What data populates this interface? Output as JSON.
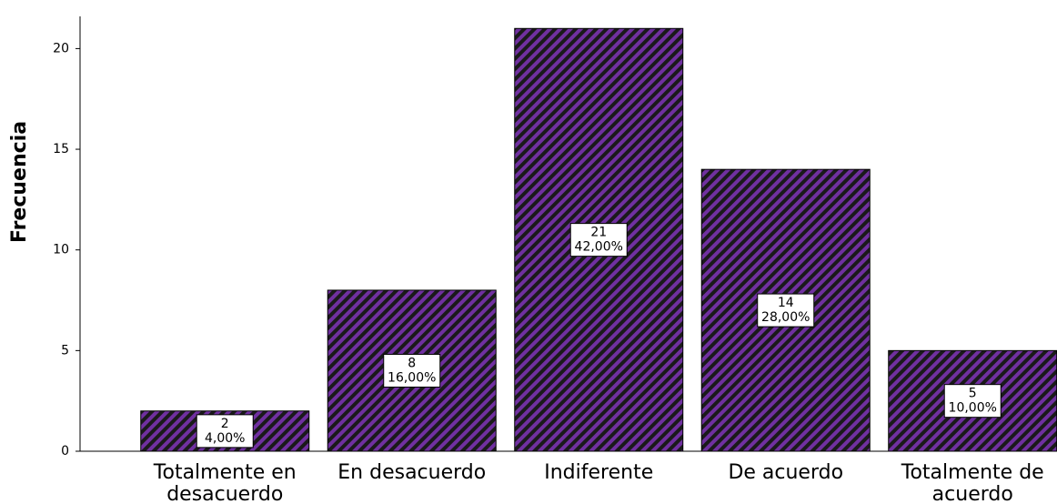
{
  "chart_data": {
    "type": "bar",
    "y_label": "Frecuencia",
    "categories": [
      "Totalmente en desacuerdo",
      "En desacuerdo",
      "Indiferente",
      "De acuerdo",
      "Totalmente de acuerdo"
    ],
    "values": [
      2,
      8,
      21,
      14,
      5
    ],
    "percent_labels": [
      "4,00%",
      "16,00%",
      "42,00%",
      "28,00%",
      "10,00%"
    ],
    "color": "#7030a0",
    "ylim": [
      0,
      21.6
    ],
    "yticks": [
      0,
      5,
      10,
      15,
      20
    ],
    "grid": false
  }
}
